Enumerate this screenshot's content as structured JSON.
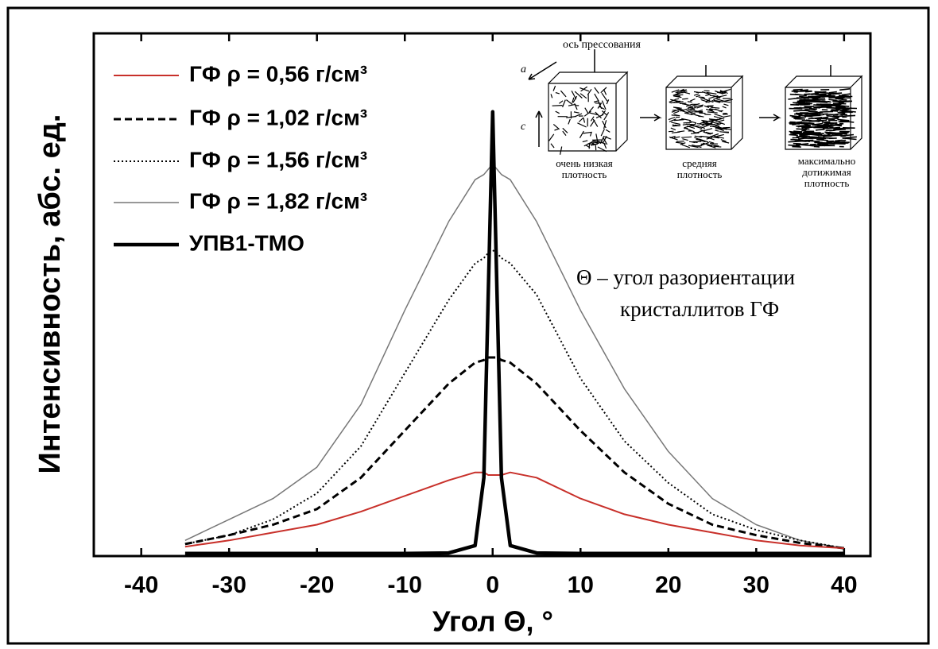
{
  "chart_data": {
    "type": "line",
    "xlabel": "Угол Θ, °",
    "ylabel": "Интенсивность, абс. ед.",
    "x": [
      -35,
      -30,
      -25,
      -20,
      -15,
      -10,
      -5,
      -2,
      -1,
      -0.5,
      0,
      0.5,
      1,
      2,
      5,
      10,
      15,
      20,
      25,
      30,
      35,
      40
    ],
    "xlim": [
      -45.4,
      43
    ],
    "xticks": [
      -40,
      -30,
      -20,
      -10,
      0,
      10,
      20,
      30,
      40
    ],
    "ylim": [
      0,
      100
    ],
    "legend": "upper left",
    "series": [
      {
        "name": "ГФ ρ = 0,56 г/см³",
        "color": "#c8302a",
        "dash": "solid",
        "values": [
          1.8,
          3,
          4.5,
          6,
          8.5,
          11.5,
          14.5,
          16,
          16,
          15.5,
          15.5,
          15.5,
          15.5,
          16,
          15,
          11,
          8,
          6,
          4.5,
          3,
          2,
          1.5
        ]
      },
      {
        "name": "ГФ ρ = 1,02 г/см³",
        "color": "#000000",
        "dash": "dashed",
        "values": [
          2.3,
          4,
          6,
          9,
          15,
          24,
          33,
          37,
          37.5,
          38,
          38,
          38,
          37.5,
          37,
          33,
          24,
          16,
          10,
          6,
          4,
          2.5,
          1.5
        ]
      },
      {
        "name": "ГФ ρ = 1,56 г/см³",
        "color": "#000000",
        "dash": "dotted",
        "values": [
          2.3,
          4,
          7,
          12,
          21,
          35,
          49,
          56,
          57,
          58,
          58.5,
          58,
          57,
          56,
          50,
          34,
          22,
          14,
          8,
          5,
          3,
          1.5
        ]
      },
      {
        "name": "ГФ ρ = 1,82 г/см³",
        "color": "#777777",
        "dash": "solid",
        "values": [
          3,
          7,
          11,
          17,
          29,
          47,
          64,
          72,
          73,
          74,
          75,
          74,
          73,
          72,
          64,
          47,
          32,
          20,
          11,
          6,
          3,
          1.5
        ]
      },
      {
        "name": "УПВ1-ТМО",
        "color": "#000000",
        "dash": "bold",
        "values": [
          0.5,
          0.5,
          0.5,
          0.5,
          0.5,
          0.5,
          0.6,
          2,
          15,
          50,
          85,
          50,
          15,
          2,
          0.6,
          0.5,
          0.5,
          0.5,
          0.5,
          0.5,
          0.5,
          0.5
        ]
      }
    ],
    "annotations": [
      "Θ – угол разориентации",
      "кристаллитов ГФ"
    ],
    "inset": {
      "axis_label": "ось прессования",
      "axis_a": "a",
      "axis_c": "c",
      "captions": [
        [
          "очень низкая",
          "плотность"
        ],
        [
          "средняя",
          "плотность"
        ],
        [
          "максимально",
          "дотижимая",
          "плотность"
        ]
      ]
    }
  }
}
